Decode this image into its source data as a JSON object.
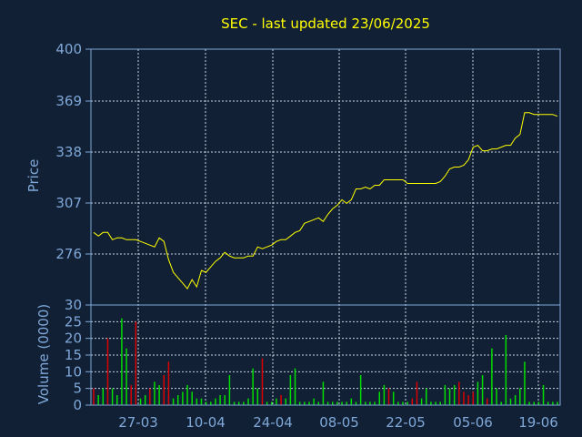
{
  "chart_data": [
    {
      "type": "line",
      "title": "SEC - last updated 23/06/2025",
      "ylabel": "Price",
      "ylim": [
        260,
        401
      ],
      "yticks": [
        "400",
        "369",
        "338",
        "307",
        "276"
      ],
      "series_color": "#ffff00",
      "grid": true,
      "x": [
        1,
        2,
        3,
        4,
        5,
        6,
        7,
        8,
        9,
        10,
        11,
        12,
        13,
        14,
        15,
        16,
        17,
        18,
        19,
        20,
        21,
        22,
        23,
        24,
        25,
        26,
        27,
        28,
        29,
        30,
        31,
        32,
        33,
        34,
        35,
        36,
        37,
        38,
        39,
        40,
        41,
        42,
        43,
        44,
        45,
        46,
        47,
        48,
        49,
        50,
        51,
        52,
        53,
        54,
        55,
        56,
        57,
        58,
        59,
        60,
        61,
        62,
        63,
        64,
        65,
        66,
        67,
        68,
        69,
        70,
        71,
        72,
        73,
        74,
        75,
        76,
        77,
        78,
        79,
        80,
        81,
        82,
        83,
        84,
        85,
        86,
        87,
        88,
        89,
        90,
        91,
        92,
        93,
        94,
        95,
        96,
        97,
        98,
        99,
        100
      ],
      "series": [
        {
          "values": [
            300,
            298,
            300,
            300,
            296,
            297,
            297,
            296,
            296,
            296,
            295,
            294,
            293,
            292,
            297,
            295,
            285,
            278,
            275,
            272,
            269,
            274,
            270,
            279,
            278,
            281,
            284,
            286,
            289,
            287,
            286,
            286,
            286,
            287,
            287,
            292,
            291,
            292,
            293,
            295,
            296,
            296,
            298,
            300,
            301,
            305,
            306,
            307,
            308,
            306,
            310,
            313,
            315,
            318,
            316,
            318,
            324,
            324,
            325,
            324,
            326,
            326,
            329,
            329,
            329,
            329,
            329,
            327,
            327,
            327,
            327,
            327,
            327,
            327,
            328,
            331,
            335,
            336,
            336,
            337,
            340,
            347,
            348,
            345,
            345,
            346,
            346,
            347,
            348,
            348,
            352,
            354,
            366,
            366,
            365,
            365,
            365,
            365,
            365,
            364
          ]
        }
      ],
      "xticks": [
        "27-03",
        "10-04",
        "24-04",
        "08-05",
        "22-05",
        "05-06",
        "19-06"
      ]
    },
    {
      "type": "bar",
      "ylabel": "Volume (0000)",
      "ylim": [
        0,
        30
      ],
      "yticks": [
        "30",
        "25",
        "20",
        "15",
        "10",
        "5",
        "0"
      ],
      "up_color": "#00dd00",
      "down_color": "#dd0000",
      "x": [
        1,
        2,
        3,
        4,
        5,
        6,
        7,
        8,
        9,
        10,
        11,
        12,
        13,
        14,
        15,
        16,
        17,
        18,
        19,
        20,
        21,
        22,
        23,
        24,
        25,
        26,
        27,
        28,
        29,
        30,
        31,
        32,
        33,
        34,
        35,
        36,
        37,
        38,
        39,
        40,
        41,
        42,
        43,
        44,
        45,
        46,
        47,
        48,
        49,
        50,
        51,
        52,
        53,
        54,
        55,
        56,
        57,
        58,
        59,
        60,
        61,
        62,
        63,
        64,
        65,
        66,
        67,
        68,
        69,
        70,
        71,
        72,
        73,
        74,
        75,
        76,
        77,
        78,
        79,
        80,
        81,
        82,
        83,
        84,
        85,
        86,
        87,
        88,
        89,
        90,
        91,
        92,
        93,
        94,
        95,
        96,
        97,
        98,
        99,
        100
      ],
      "values": [
        5,
        3,
        5,
        20,
        5,
        3,
        26,
        17,
        6,
        25,
        2,
        3,
        5,
        7,
        6,
        9,
        13,
        2,
        3,
        4,
        6,
        4,
        2,
        2,
        1,
        1,
        2,
        3,
        3,
        9,
        1,
        1,
        1,
        2,
        11,
        5,
        14,
        1,
        1,
        2,
        3,
        2,
        9,
        11,
        1,
        1,
        1,
        2,
        1,
        7,
        1,
        1,
        1,
        1,
        1,
        2,
        1,
        9,
        1,
        1,
        1,
        4,
        6,
        5,
        4,
        1,
        1,
        1,
        2,
        7,
        2,
        5,
        1,
        1,
        1,
        6,
        5,
        6,
        7,
        4,
        3,
        4,
        7,
        9,
        2,
        17,
        5,
        1,
        21,
        2,
        3,
        5,
        13,
        1,
        1,
        1,
        6,
        1,
        1,
        1
      ],
      "colors": [
        "r",
        "g",
        "g",
        "r",
        "g",
        "g",
        "g",
        "g",
        "r",
        "r",
        "g",
        "g",
        "r",
        "g",
        "g",
        "r",
        "r",
        "g",
        "g",
        "g",
        "g",
        "g",
        "g",
        "g",
        "g",
        "g",
        "g",
        "g",
        "g",
        "g",
        "g",
        "g",
        "g",
        "g",
        "g",
        "g",
        "r",
        "g",
        "g",
        "g",
        "r",
        "g",
        "g",
        "g",
        "g",
        "g",
        "g",
        "g",
        "g",
        "g",
        "g",
        "g",
        "g",
        "g",
        "g",
        "g",
        "g",
        "g",
        "g",
        "g",
        "g",
        "g",
        "g",
        "r",
        "g",
        "g",
        "g",
        "g",
        "r",
        "r",
        "g",
        "g",
        "g",
        "g",
        "g",
        "g",
        "g",
        "g",
        "r",
        "r",
        "r",
        "r",
        "g",
        "g",
        "r",
        "g",
        "g",
        "g",
        "g",
        "g",
        "g",
        "g",
        "g",
        "g",
        "g",
        "g",
        "g",
        "g",
        "g",
        "g"
      ],
      "xticks": [
        "27-03",
        "10-04",
        "24-04",
        "08-05",
        "22-05",
        "05-06",
        "19-06"
      ]
    }
  ]
}
